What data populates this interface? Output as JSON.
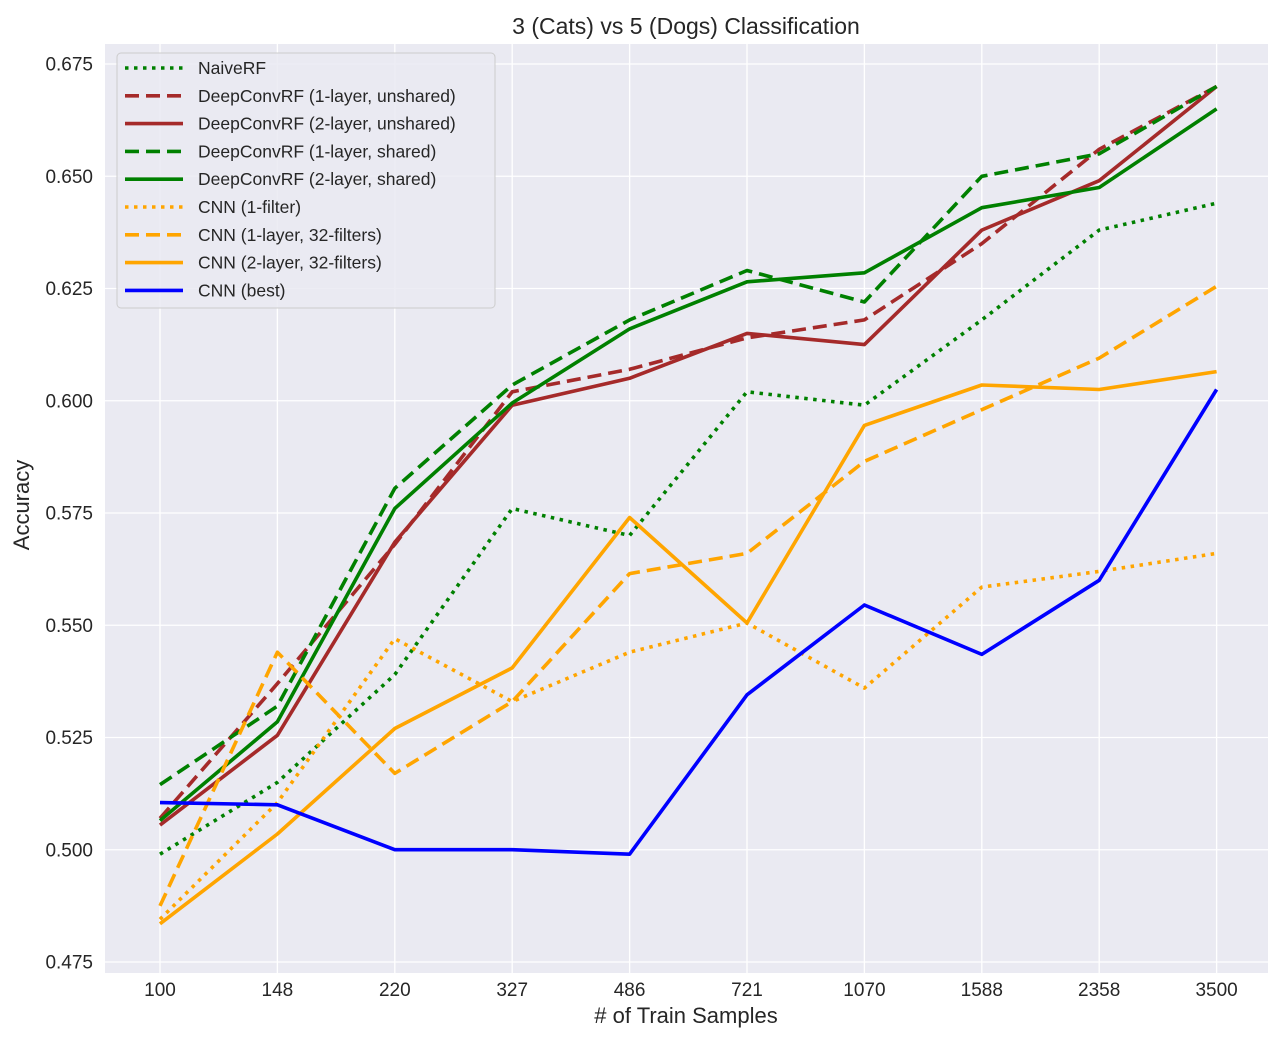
{
  "chart_data": {
    "type": "line",
    "title": "3 (Cats) vs 5 (Dogs) Classification",
    "xlabel": "# of Train Samples",
    "ylabel": "Accuracy",
    "categories": [
      "100",
      "148",
      "220",
      "327",
      "486",
      "721",
      "1070",
      "1588",
      "2358",
      "3500"
    ],
    "ylim": [
      0.4725,
      0.68
    ],
    "yticks": [
      "0.475",
      "0.500",
      "0.525",
      "0.550",
      "0.575",
      "0.600",
      "0.625",
      "0.650",
      "0.675"
    ],
    "grid": true,
    "legend_position": "top-left",
    "background_color": "#eaeaf2",
    "series": [
      {
        "name": "NaiveRF",
        "color": "#008000",
        "style": "dotted",
        "values": [
          0.499,
          0.515,
          0.539,
          0.576,
          0.57,
          0.602,
          0.599,
          0.618,
          0.638,
          0.644
        ]
      },
      {
        "name": "DeepConvRF (1-layer, unshared)",
        "color": "#a52a2a",
        "style": "dashed",
        "values": [
          0.507,
          0.537,
          0.568,
          0.602,
          0.607,
          0.614,
          0.618,
          0.635,
          0.656,
          0.67
        ]
      },
      {
        "name": "DeepConvRF (2-layer, unshared)",
        "color": "#a52a2a",
        "style": "solid",
        "values": [
          0.5055,
          0.5255,
          0.5685,
          0.599,
          0.605,
          0.615,
          0.6125,
          0.638,
          0.649,
          0.67
        ]
      },
      {
        "name": "DeepConvRF (1-layer, shared)",
        "color": "#008000",
        "style": "dashed",
        "values": [
          0.5145,
          0.532,
          0.5805,
          0.6035,
          0.618,
          0.629,
          0.622,
          0.65,
          0.655,
          0.67
        ]
      },
      {
        "name": "DeepConvRF (2-layer, shared)",
        "color": "#008000",
        "style": "solid",
        "values": [
          0.5065,
          0.5285,
          0.576,
          0.5995,
          0.616,
          0.6265,
          0.6285,
          0.643,
          0.6475,
          0.665
        ]
      },
      {
        "name": "CNN (1-filter)",
        "color": "#ffa500",
        "style": "dotted",
        "values": [
          0.4845,
          0.5105,
          0.547,
          0.533,
          0.544,
          0.5505,
          0.536,
          0.5585,
          0.562,
          0.566
        ]
      },
      {
        "name": "CNN (1-layer, 32-filters)",
        "color": "#ffa500",
        "style": "dashed",
        "values": [
          0.4875,
          0.544,
          0.517,
          0.533,
          0.5615,
          0.566,
          0.5865,
          0.598,
          0.6095,
          0.6255
        ]
      },
      {
        "name": "CNN (2-layer, 32-filters)",
        "color": "#ffa500",
        "style": "solid",
        "values": [
          0.4835,
          0.5035,
          0.527,
          0.5405,
          0.574,
          0.5505,
          0.5945,
          0.6035,
          0.6025,
          0.6065
        ]
      },
      {
        "name": "CNN (best)",
        "color": "#0000ff",
        "style": "solid",
        "values": [
          0.5105,
          0.51,
          0.5,
          0.5,
          0.499,
          0.5345,
          0.5545,
          0.5435,
          0.56,
          0.6025
        ]
      }
    ]
  }
}
